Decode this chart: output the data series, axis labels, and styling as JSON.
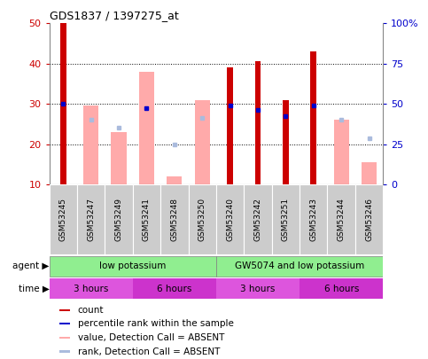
{
  "title": "GDS1837 / 1397275_at",
  "samples": [
    "GSM53245",
    "GSM53247",
    "GSM53249",
    "GSM53241",
    "GSM53248",
    "GSM53250",
    "GSM53240",
    "GSM53242",
    "GSM53251",
    "GSM53243",
    "GSM53244",
    "GSM53246"
  ],
  "red_bars": [
    50,
    0,
    0,
    0,
    0,
    0,
    39,
    40.5,
    31,
    43,
    0,
    0
  ],
  "pink_bars": [
    0,
    29.5,
    23,
    38,
    12,
    31,
    0,
    0,
    0,
    0,
    26,
    15.5
  ],
  "blue_dots": [
    30,
    0,
    0,
    29,
    0,
    0,
    29.5,
    28.5,
    27,
    29.5,
    0,
    0
  ],
  "light_blue_dots": [
    0,
    26,
    24,
    0,
    20,
    26.5,
    0,
    0,
    0,
    0,
    26,
    21.5
  ],
  "ylim_left": [
    10,
    50
  ],
  "ylim_right": [
    0,
    100
  ],
  "yticks_left": [
    10,
    20,
    30,
    40,
    50
  ],
  "yticks_right": [
    0,
    25,
    50,
    75,
    100
  ],
  "ytick_labels_right": [
    "0",
    "25",
    "50",
    "75",
    "100%"
  ],
  "left_color": "#cc0000",
  "right_color": "#0000cc",
  "agent_groups": [
    {
      "label": "low potassium",
      "start": 0,
      "end": 6,
      "color": "#90ee90"
    },
    {
      "label": "GW5074 and low potassium",
      "start": 6,
      "end": 12,
      "color": "#90ee90"
    }
  ],
  "time_groups": [
    {
      "label": "3 hours",
      "start": 0,
      "end": 3,
      "color": "#dd55dd"
    },
    {
      "label": "6 hours",
      "start": 3,
      "end": 6,
      "color": "#cc33cc"
    },
    {
      "label": "3 hours",
      "start": 6,
      "end": 9,
      "color": "#dd55dd"
    },
    {
      "label": "6 hours",
      "start": 9,
      "end": 12,
      "color": "#cc33cc"
    }
  ],
  "pink_bar_color": "#ffaaaa",
  "light_blue_color": "#aabbdd",
  "red_bar_color": "#cc0000",
  "blue_dot_color": "#0000cc",
  "plot_bg": "#ffffff",
  "label_bg": "#cccccc",
  "background_color": "#ffffff",
  "grid_color": "#000000"
}
